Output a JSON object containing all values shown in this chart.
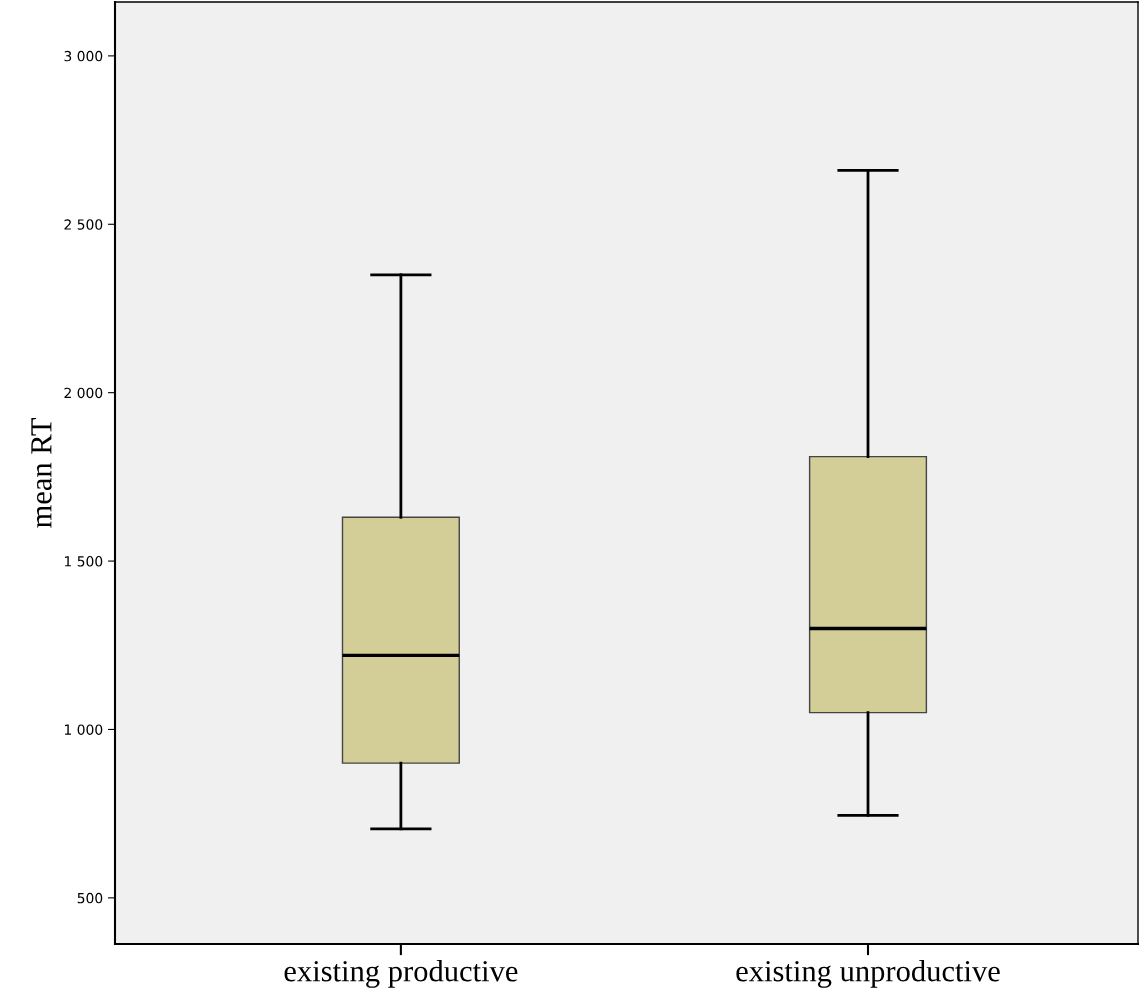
{
  "chart_data": {
    "type": "box",
    "ylabel": "mean RT",
    "categories": [
      "existing productive",
      "existing unproductive"
    ],
    "color": "#d3ce97",
    "boxes": [
      {
        "low": 705,
        "q1": 900,
        "median": 1220,
        "q3": 1630,
        "high": 2350
      },
      {
        "low": 745,
        "q1": 1050,
        "median": 1300,
        "q3": 1810,
        "high": 2660
      }
    ],
    "ylim": [
      363,
      3160
    ],
    "yticks": [
      {
        "value": 500,
        "label": "500"
      },
      {
        "value": 1000,
        "label": "1 000"
      },
      {
        "value": 1500,
        "label": "1 500"
      },
      {
        "value": 2000,
        "label": "2 000"
      },
      {
        "value": 2500,
        "label": "2 500"
      },
      {
        "value": 3000,
        "label": "3 000"
      }
    ],
    "grid": false
  }
}
